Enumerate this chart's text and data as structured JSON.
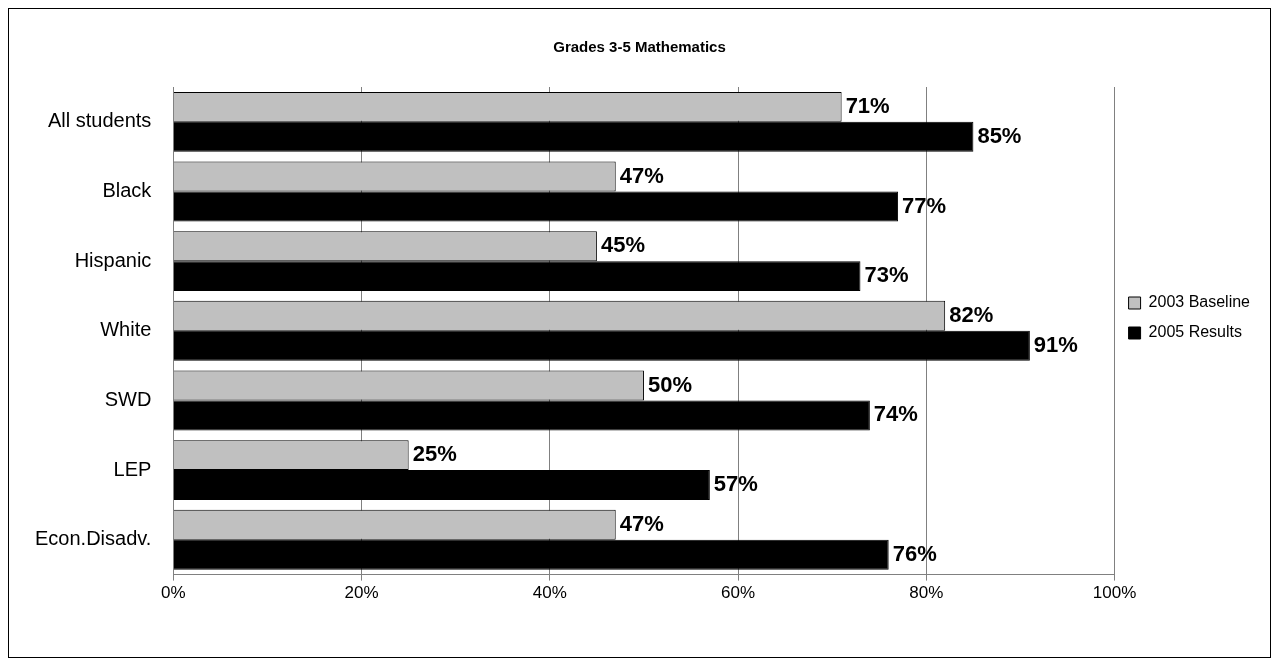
{
  "chart_data": {
    "type": "bar",
    "orientation": "horizontal",
    "title": "Grades 3-5 Mathematics",
    "categories": [
      "All students",
      "Black",
      "Hispanic",
      "White",
      "SWD",
      "LEP",
      "Econ.Disadv."
    ],
    "series": [
      {
        "name": "2003 Baseline",
        "color": "#c0c0c0",
        "values": [
          71,
          47,
          45,
          82,
          50,
          25,
          47
        ],
        "value_labels": [
          "71%",
          "47%",
          "45%",
          "82%",
          "50%",
          "25%",
          "47%"
        ]
      },
      {
        "name": "2005 Results",
        "color": "#000000",
        "values": [
          85,
          77,
          73,
          91,
          74,
          57,
          76
        ],
        "value_labels": [
          "85%",
          "77%",
          "73%",
          "91%",
          "74%",
          "57%",
          "76%"
        ]
      }
    ],
    "xlim": [
      0,
      100
    ],
    "xticks": [
      {
        "value": 0,
        "label": "0%"
      },
      {
        "value": 20,
        "label": "20%"
      },
      {
        "value": 40,
        "label": "40%"
      },
      {
        "value": 60,
        "label": "60%"
      },
      {
        "value": 80,
        "label": "80%"
      },
      {
        "value": 100,
        "label": "100%"
      }
    ],
    "grid": "x",
    "legend": "right"
  }
}
